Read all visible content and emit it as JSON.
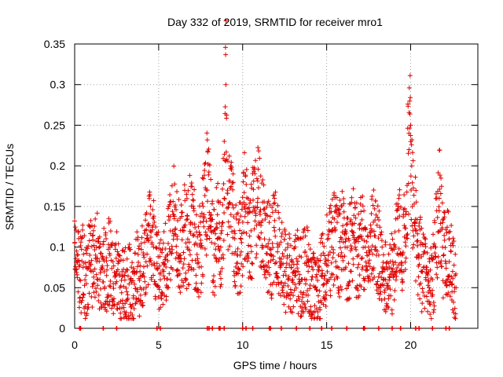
{
  "chart_data": {
    "type": "scatter",
    "title": "Day 332 of 2019, SRMTID for receiver mro1",
    "xlabel": "GPS time / hours",
    "ylabel": "SRMTID / TECUs",
    "xlim": [
      0,
      24
    ],
    "ylim": [
      0,
      0.35
    ],
    "xticks": [
      0,
      5,
      10,
      15,
      20
    ],
    "xtick_labels": [
      "0",
      "5",
      "10",
      "15",
      "20"
    ],
    "yticks": [
      0,
      0.05,
      0.1,
      0.15,
      0.2,
      0.25,
      0.3,
      0.35
    ],
    "ytick_labels": [
      "0",
      "0.05",
      "0.1",
      "0.15",
      "0.2",
      "0.25",
      "0.3",
      "0.35"
    ],
    "grid": true,
    "marker": "+",
    "color": "#e00000",
    "series": [
      {
        "name": "SRMTID",
        "x": [
          0.0,
          0.15,
          0.3,
          0.5,
          0.7,
          0.9,
          1.1,
          1.3,
          1.5,
          1.7,
          1.9,
          2.1,
          2.3,
          2.5,
          2.7,
          2.9,
          3.1,
          3.3,
          3.5,
          3.7,
          3.9,
          4.1,
          4.3,
          4.5,
          4.7,
          4.9,
          5.1,
          5.3,
          5.5,
          5.7,
          5.9,
          6.1,
          6.3,
          6.5,
          6.7,
          6.9,
          7.1,
          7.3,
          7.5,
          7.7,
          7.9,
          8.1,
          8.3,
          8.5,
          8.7,
          8.9,
          9.0,
          9.1,
          9.3,
          9.5,
          9.7,
          9.9,
          10.1,
          10.3,
          10.5,
          10.7,
          10.9,
          11.1,
          11.3,
          11.5,
          11.7,
          11.9,
          12.1,
          12.3,
          12.5,
          12.7,
          12.9,
          13.1,
          13.3,
          13.5,
          13.7,
          13.9,
          14.1,
          14.3,
          14.5,
          14.7,
          14.9,
          15.1,
          15.3,
          15.5,
          15.7,
          15.9,
          16.1,
          16.3,
          16.5,
          16.7,
          16.9,
          17.1,
          17.3,
          17.5,
          17.7,
          17.9,
          18.1,
          18.3,
          18.5,
          18.7,
          18.9,
          19.1,
          19.3,
          19.5,
          19.7,
          19.9,
          20.0,
          20.1,
          20.3,
          20.5,
          20.7,
          20.9,
          21.1,
          21.3,
          21.5,
          21.7,
          21.9,
          22.1,
          22.3,
          22.5,
          22.7
        ],
        "y": [
          0.105,
          0.09,
          0.06,
          0.075,
          0.055,
          0.09,
          0.07,
          0.1,
          0.06,
          0.085,
          0.065,
          0.09,
          0.055,
          0.07,
          0.05,
          0.065,
          0.045,
          0.06,
          0.04,
          0.07,
          0.05,
          0.09,
          0.11,
          0.12,
          0.1,
          0.08,
          0.06,
          0.07,
          0.09,
          0.12,
          0.14,
          0.11,
          0.09,
          0.12,
          0.1,
          0.13,
          0.115,
          0.08,
          0.1,
          0.14,
          0.17,
          0.12,
          0.09,
          0.14,
          0.1,
          0.16,
          0.3,
          0.17,
          0.14,
          0.12,
          0.09,
          0.11,
          0.15,
          0.13,
          0.12,
          0.145,
          0.16,
          0.13,
          0.11,
          0.1,
          0.09,
          0.12,
          0.1,
          0.08,
          0.07,
          0.06,
          0.075,
          0.065,
          0.07,
          0.06,
          0.08,
          0.07,
          0.06,
          0.05,
          0.04,
          0.065,
          0.08,
          0.09,
          0.1,
          0.12,
          0.09,
          0.11,
          0.1,
          0.08,
          0.12,
          0.1,
          0.09,
          0.11,
          0.1,
          0.08,
          0.12,
          0.1,
          0.09,
          0.07,
          0.06,
          0.08,
          0.07,
          0.1,
          0.12,
          0.09,
          0.14,
          0.22,
          0.25,
          0.15,
          0.12,
          0.09,
          0.07,
          0.06,
          0.05,
          0.06,
          0.1,
          0.16,
          0.1,
          0.08,
          0.11,
          0.07,
          0.05
        ],
        "zero_points_x": [
          0.3,
          0.35,
          1.7,
          2.5,
          4.9,
          5.1,
          7.9,
          8.0,
          8.2,
          8.6,
          8.65,
          8.9,
          10.0,
          10.2,
          10.6,
          11.6,
          11.65,
          12.3,
          13.2,
          14.0,
          14.7,
          15.3,
          16.2,
          17.2,
          17.25,
          18.1,
          18.9,
          19.4,
          20.3,
          20.5,
          21.3,
          22.1,
          22.3
        ]
      }
    ]
  }
}
